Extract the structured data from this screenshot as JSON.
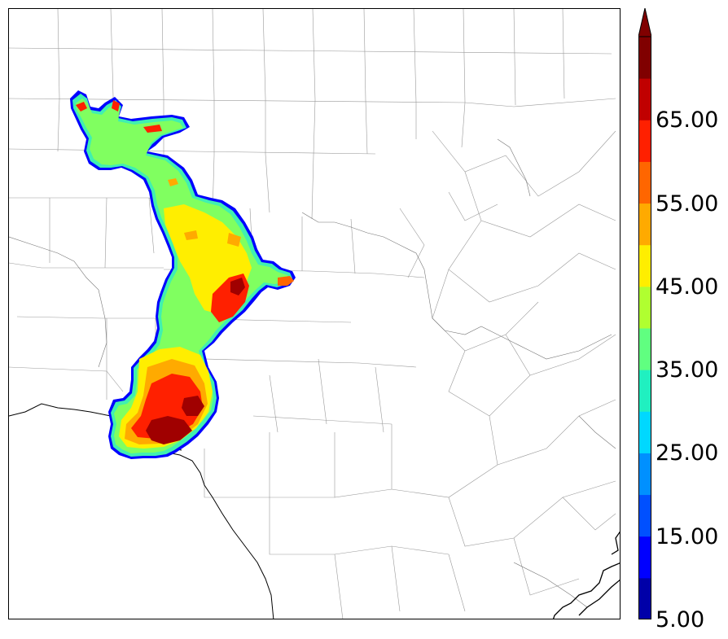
{
  "colorbar": {
    "tick_labels": [
      "5.00",
      "15.00",
      "25.00",
      "35.00",
      "45.00",
      "55.00",
      "65.00"
    ],
    "levels": [
      5,
      10,
      15,
      20,
      25,
      30,
      35,
      40,
      45,
      50,
      55,
      60,
      65,
      70
    ],
    "colors": [
      "#0000a8",
      "#0000ff",
      "#0050ff",
      "#0090ff",
      "#00d8ff",
      "#20f0c0",
      "#60ff80",
      "#b0ff30",
      "#ffee00",
      "#ffaa00",
      "#ff6600",
      "#ff2000",
      "#c00000",
      "#800000"
    ],
    "extend": "max"
  },
  "map": {
    "region": "south-central Texas county map",
    "field_colors": {
      "low": "#60ff80",
      "mid": "#ffee00",
      "high": "#ff2000",
      "max": "#a00000",
      "edge": "#0000ff"
    }
  }
}
